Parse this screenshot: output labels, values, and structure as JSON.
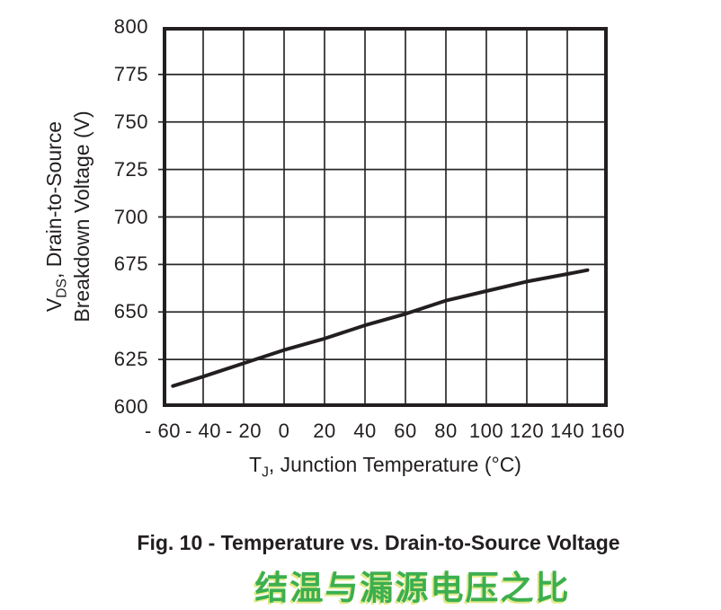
{
  "figure": {
    "caption": "Fig. 10 - Temperature vs. Drain-to-Source Voltage",
    "caption_zh": "结温与漏源电压之比"
  },
  "axis": {
    "y_title_line1_prefix": "V",
    "y_title_line1_sub": "DS",
    "y_title_line1_rest": ", Drain-to-Source",
    "y_title_line2": "Breakdown Voltage (V)",
    "x_title_prefix": "T",
    "x_title_sub": "J",
    "x_title_rest": ", Junction Temperature (°C)"
  },
  "colors": {
    "text": "#231f20",
    "curve": "#231f20",
    "grid": "#2a2a2a",
    "border": "#231f20",
    "caption_zh_green": "#3caf50",
    "caption_zh_halo": "#d8e35c",
    "background": "#ffffff"
  },
  "chart_data": {
    "type": "line",
    "title": "Fig. 10 - Temperature vs. Drain-to-Source Voltage",
    "xlabel": "TJ, Junction Temperature (°C)",
    "ylabel": "VDS, Drain-to-Source Breakdown Voltage (V)",
    "xlim": [
      -60,
      160
    ],
    "ylim": [
      600,
      800
    ],
    "x_ticks": [
      -60,
      -40,
      -20,
      0,
      20,
      40,
      60,
      80,
      100,
      120,
      140,
      160
    ],
    "x_tick_labels": [
      "- 60",
      "- 40",
      "- 20",
      "0",
      "20",
      "40",
      "60",
      "80",
      "100",
      "120",
      "140",
      "160"
    ],
    "y_ticks": [
      800,
      775,
      750,
      725,
      700,
      675,
      650,
      625,
      600
    ],
    "y_tick_labels": [
      "800",
      "775",
      "750",
      "725",
      "700",
      "675",
      "650",
      "625",
      "600"
    ],
    "grid": true,
    "legend": "none",
    "series": [
      {
        "name": "drain-to-source-breakdown-voltage",
        "x": [
          -55,
          -40,
          -20,
          0,
          20,
          40,
          60,
          80,
          100,
          120,
          140,
          150
        ],
        "y": [
          611,
          616,
          623,
          630,
          636,
          643,
          649,
          656,
          661,
          666,
          670,
          672
        ]
      }
    ]
  }
}
